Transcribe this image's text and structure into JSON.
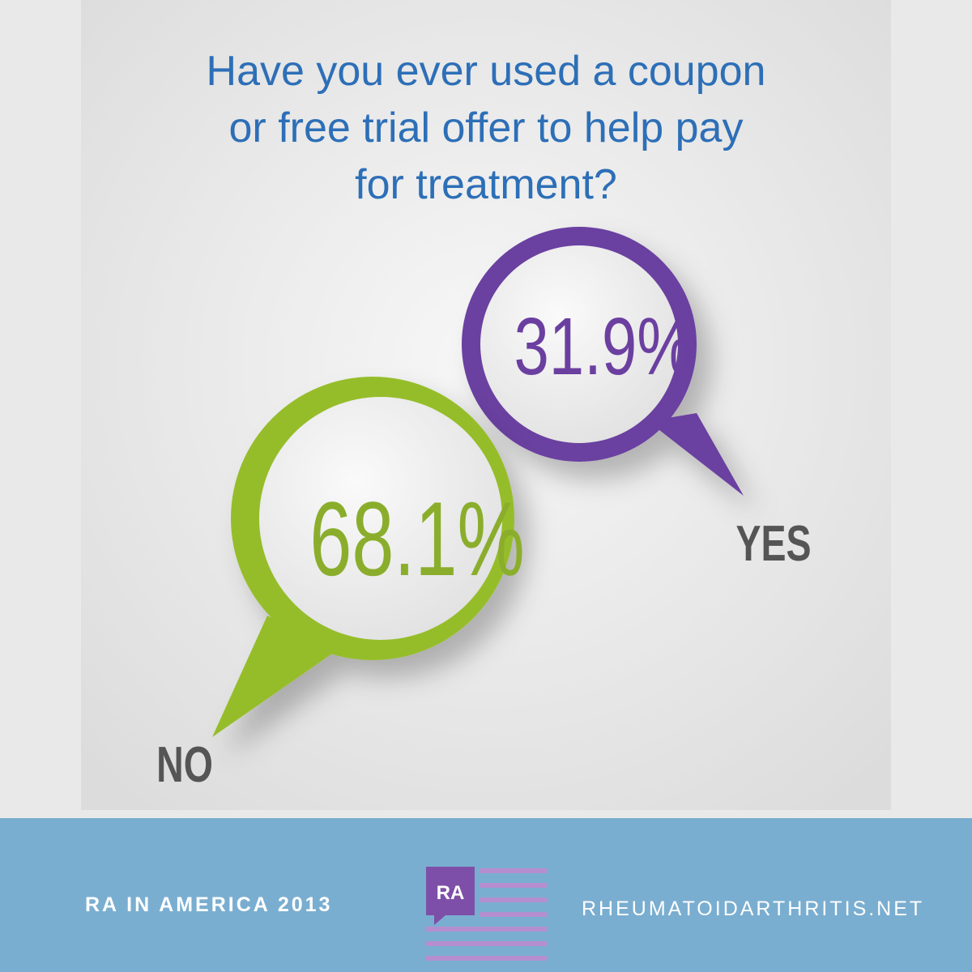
{
  "question": {
    "lines": [
      "Have you ever used a coupon",
      "or free trial offer to help pay",
      "for treatment?"
    ]
  },
  "answers": [
    {
      "label": "NO",
      "value": "68.1%"
    },
    {
      "label": "YES",
      "value": "31.9%"
    }
  ],
  "footer": {
    "left": "RA IN AMERICA 2013",
    "logo": "RA",
    "right": "RHEUMATOIDARTHRITIS.NET"
  }
}
